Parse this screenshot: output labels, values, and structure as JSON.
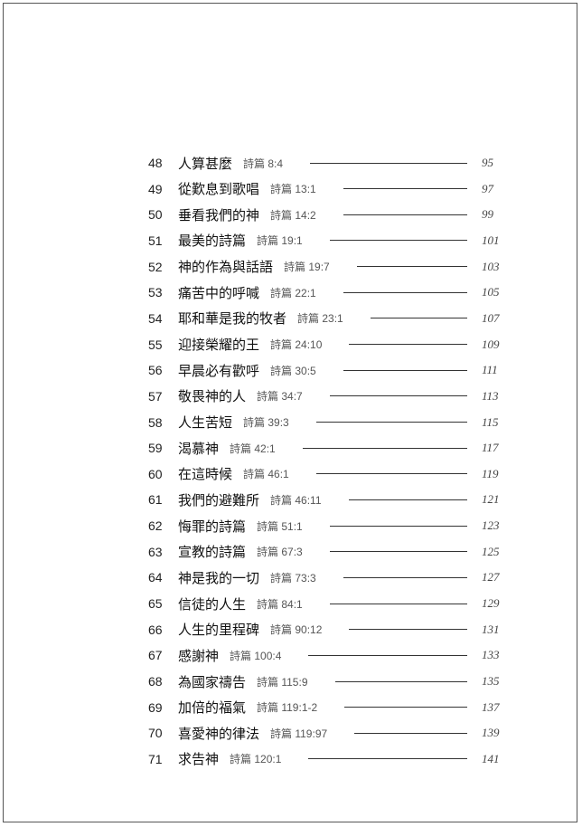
{
  "toc": [
    {
      "num": "48",
      "title": "人算甚麼",
      "verse": "詩篇 8:4",
      "page": "95"
    },
    {
      "num": "49",
      "title": "從歎息到歌唱",
      "verse": "詩篇 13:1",
      "page": "97"
    },
    {
      "num": "50",
      "title": "垂看我們的神",
      "verse": "詩篇 14:2",
      "page": "99"
    },
    {
      "num": "51",
      "title": "最美的詩篇",
      "verse": "詩篇 19:1",
      "page": "101"
    },
    {
      "num": "52",
      "title": "神的作為與話語",
      "verse": "詩篇 19:7",
      "page": "103"
    },
    {
      "num": "53",
      "title": "痛苦中的呼喊",
      "verse": "詩篇 22:1",
      "page": "105"
    },
    {
      "num": "54",
      "title": "耶和華是我的牧者",
      "verse": "詩篇 23:1",
      "page": "107"
    },
    {
      "num": "55",
      "title": "迎接榮耀的王",
      "verse": "詩篇 24:10",
      "page": "109"
    },
    {
      "num": "56",
      "title": "早晨必有歡呼",
      "verse": "詩篇 30:5",
      "page": "111"
    },
    {
      "num": "57",
      "title": "敬畏神的人",
      "verse": "詩篇 34:7",
      "page": "113"
    },
    {
      "num": "58",
      "title": "人生苦短",
      "verse": "詩篇 39:3",
      "page": "115"
    },
    {
      "num": "59",
      "title": "渴慕神",
      "verse": "詩篇 42:1",
      "page": "117"
    },
    {
      "num": "60",
      "title": "在這時候",
      "verse": "詩篇 46:1",
      "page": "119"
    },
    {
      "num": "61",
      "title": "我們的避難所",
      "verse": "詩篇 46:11",
      "page": "121"
    },
    {
      "num": "62",
      "title": "悔罪的詩篇",
      "verse": "詩篇 51:1",
      "page": "123"
    },
    {
      "num": "63",
      "title": "宣教的詩篇",
      "verse": "詩篇 67:3",
      "page": "125"
    },
    {
      "num": "64",
      "title": "神是我的一切",
      "verse": "詩篇 73:3",
      "page": "127"
    },
    {
      "num": "65",
      "title": "信徒的人生",
      "verse": "詩篇 84:1",
      "page": "129"
    },
    {
      "num": "66",
      "title": "人生的里程碑",
      "verse": "詩篇 90:12",
      "page": "131"
    },
    {
      "num": "67",
      "title": "感謝神",
      "verse": "詩篇 100:4",
      "page": "133"
    },
    {
      "num": "68",
      "title": "為國家禱告",
      "verse": "詩篇 115:9",
      "page": "135"
    },
    {
      "num": "69",
      "title": "加倍的福氣",
      "verse": "詩篇 119:1-2",
      "page": "137"
    },
    {
      "num": "70",
      "title": "喜愛神的律法",
      "verse": "詩篇 119:97",
      "page": "139"
    },
    {
      "num": "71",
      "title": "求告神",
      "verse": "詩篇 120:1",
      "page": "141"
    }
  ]
}
